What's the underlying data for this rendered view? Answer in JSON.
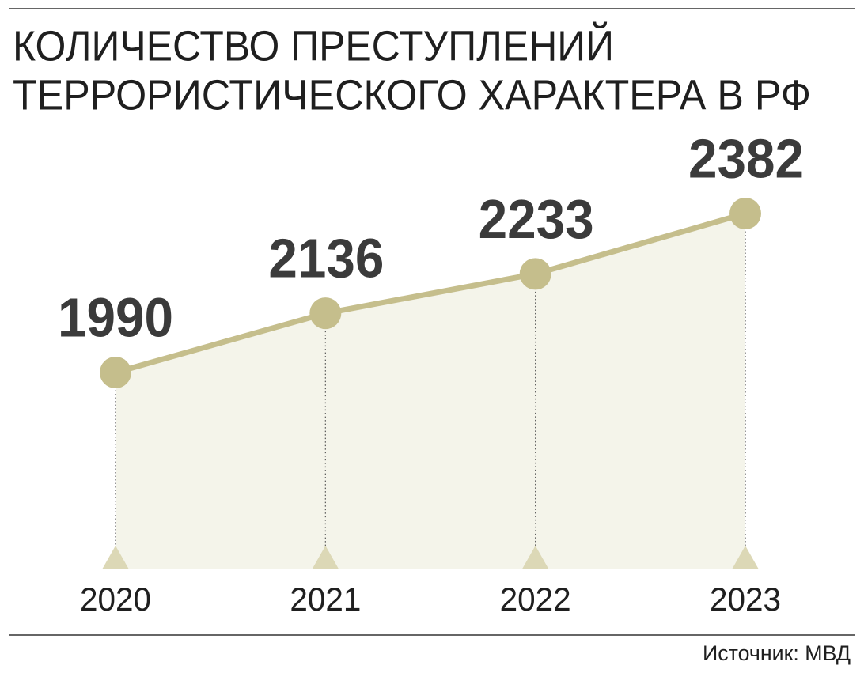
{
  "chart_data": {
    "type": "line",
    "title": [
      "КОЛИЧЕСТВО ПРЕСТУПЛЕНИЙ",
      "ТЕРРОРИСТИЧЕСКОГО ХАРАКТЕРА В РФ"
    ],
    "categories": [
      "2020",
      "2021",
      "2022",
      "2023"
    ],
    "values": [
      1990,
      2136,
      2233,
      2382
    ],
    "color": "#c5be8c",
    "area_color": "#f4f4ea",
    "source": "Источник: МВД"
  }
}
